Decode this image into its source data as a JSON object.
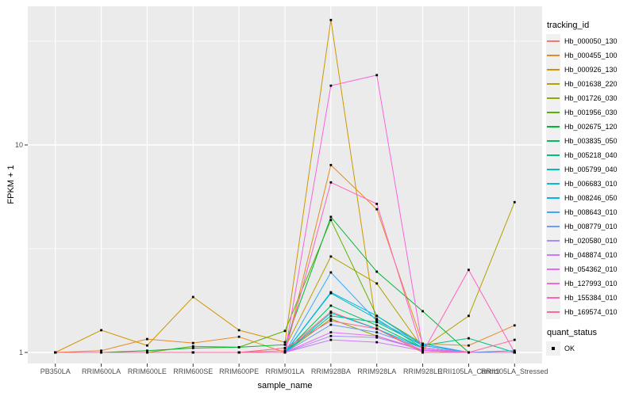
{
  "figure": {
    "background": "#FFFFFF",
    "panel_background": "#EBEBEB",
    "grid_color": "#FFFFFF",
    "tick_color": "#333333",
    "tick_label_color": "#4D4D4D",
    "point_color": "#000000"
  },
  "chart_data": {
    "type": "line",
    "title": "",
    "xlabel": "sample_name",
    "ylabel": "FPKM + 1",
    "y_scale": "log10",
    "y_ticks": [
      1,
      10
    ],
    "y_minor_ticks": [
      3.1623,
      31.623
    ],
    "ylim": [
      1,
      46
    ],
    "grid": true,
    "legend": {
      "title": "tracking_id",
      "position": "right"
    },
    "legend2": {
      "title": "quant_status",
      "items": [
        {
          "label": "OK",
          "marker": "black-square"
        }
      ]
    },
    "categories": [
      "PB350LA",
      "RRIM600LA",
      "RRIM600LE",
      "RRIM600SE",
      "RRIM600PE",
      "RRIM901LA",
      "RRIM928BA",
      "RRIM928LA",
      "RRIM928LE",
      "RRII105LA_Control",
      "RRII105LA_Stressed"
    ],
    "series": [
      {
        "name": "Hb_000050_130",
        "color": "#F8766D",
        "values": [
          1,
          1,
          1,
          1,
          1,
          1.02,
          1.57,
          1.3,
          1.02,
          1,
          1
        ]
      },
      {
        "name": "Hb_000455_100",
        "color": "#E78A24",
        "values": [
          1,
          1.02,
          1.16,
          1.11,
          1.19,
          1,
          8,
          4.9,
          1.1,
          1.08,
          1.35
        ]
      },
      {
        "name": "Hb_000926_130",
        "color": "#CE9700",
        "values": [
          1,
          1.28,
          1.08,
          1.85,
          1.28,
          1.12,
          40,
          1.3,
          1,
          1,
          1
        ]
      },
      {
        "name": "Hb_001638_220",
        "color": "#B5A000",
        "values": [
          1,
          1,
          1,
          1,
          1,
          1.05,
          2.9,
          2.15,
          1.05,
          1.5,
          5.3
        ]
      },
      {
        "name": "Hb_001726_030",
        "color": "#93A800",
        "values": [
          1,
          1,
          1,
          1,
          1,
          1,
          1.45,
          1.2,
          1.02,
          1,
          1
        ]
      },
      {
        "name": "Hb_001956_030",
        "color": "#5EB000",
        "values": [
          1,
          1,
          1,
          1.07,
          1.06,
          1.27,
          4.35,
          1.5,
          1.1,
          1,
          1
        ]
      },
      {
        "name": "Hb_002675_120",
        "color": "#00B735",
        "values": [
          1,
          1,
          1.02,
          1.05,
          1.06,
          1.09,
          4.5,
          2.45,
          1.58,
          1,
          1
        ]
      },
      {
        "name": "Hb_003835_050",
        "color": "#00BC5F",
        "values": [
          1,
          1,
          1,
          1,
          1,
          1,
          1.68,
          1.35,
          1.05,
          1,
          1
        ]
      },
      {
        "name": "Hb_005218_040",
        "color": "#00C087",
        "values": [
          1,
          1,
          1,
          1,
          1,
          1,
          1.5,
          1.4,
          1.08,
          1.17,
          1
        ]
      },
      {
        "name": "Hb_005799_040",
        "color": "#00C0B3",
        "values": [
          1,
          1,
          1,
          1,
          1,
          1,
          1.93,
          1.45,
          1.05,
          1,
          1
        ]
      },
      {
        "name": "Hb_006683_010",
        "color": "#00BBDA",
        "values": [
          1,
          1,
          1,
          1,
          1,
          1,
          1.55,
          1.3,
          1.05,
          1,
          1.02
        ]
      },
      {
        "name": "Hb_008246_050",
        "color": "#00B3F2",
        "values": [
          1,
          1,
          1,
          1,
          1,
          1,
          1.95,
          1.5,
          1.08,
          1,
          1
        ]
      },
      {
        "name": "Hb_008643_010",
        "color": "#35AAFE",
        "values": [
          1,
          1,
          1,
          1,
          1,
          1,
          2.43,
          1.42,
          1.1,
          1,
          1
        ]
      },
      {
        "name": "Hb_008779_010",
        "color": "#6E9BFF",
        "values": [
          1,
          1,
          1,
          1,
          1,
          1,
          1.36,
          1.25,
          1.05,
          1,
          1
        ]
      },
      {
        "name": "Hb_020580_010",
        "color": "#A98CFF",
        "values": [
          1,
          1,
          1,
          1,
          1,
          1,
          1.2,
          1.18,
          1.03,
          1,
          1
        ]
      },
      {
        "name": "Hb_048874_010",
        "color": "#CD79FF",
        "values": [
          1,
          1,
          1,
          1,
          1,
          1,
          1.15,
          1.12,
          1.02,
          1,
          1
        ]
      },
      {
        "name": "Hb_054362_010",
        "color": "#E86BF4",
        "values": [
          1,
          1,
          1,
          1,
          1,
          1,
          1.25,
          1.2,
          1.03,
          1,
          1
        ]
      },
      {
        "name": "Hb_127993_010",
        "color": "#F964DC",
        "values": [
          1,
          1,
          1,
          1,
          1,
          1,
          19.3,
          21.7,
          1.05,
          1,
          1
        ]
      },
      {
        "name": "Hb_155384_010",
        "color": "#FF61C2",
        "values": [
          1,
          1,
          1,
          1,
          1,
          1,
          6.6,
          5.2,
          1,
          2.5,
          1
        ]
      },
      {
        "name": "Hb_169574_010",
        "color": "#FF689B",
        "values": [
          1,
          1,
          1,
          1,
          1,
          1.05,
          1.42,
          1.3,
          1,
          1,
          1.15
        ]
      }
    ]
  }
}
